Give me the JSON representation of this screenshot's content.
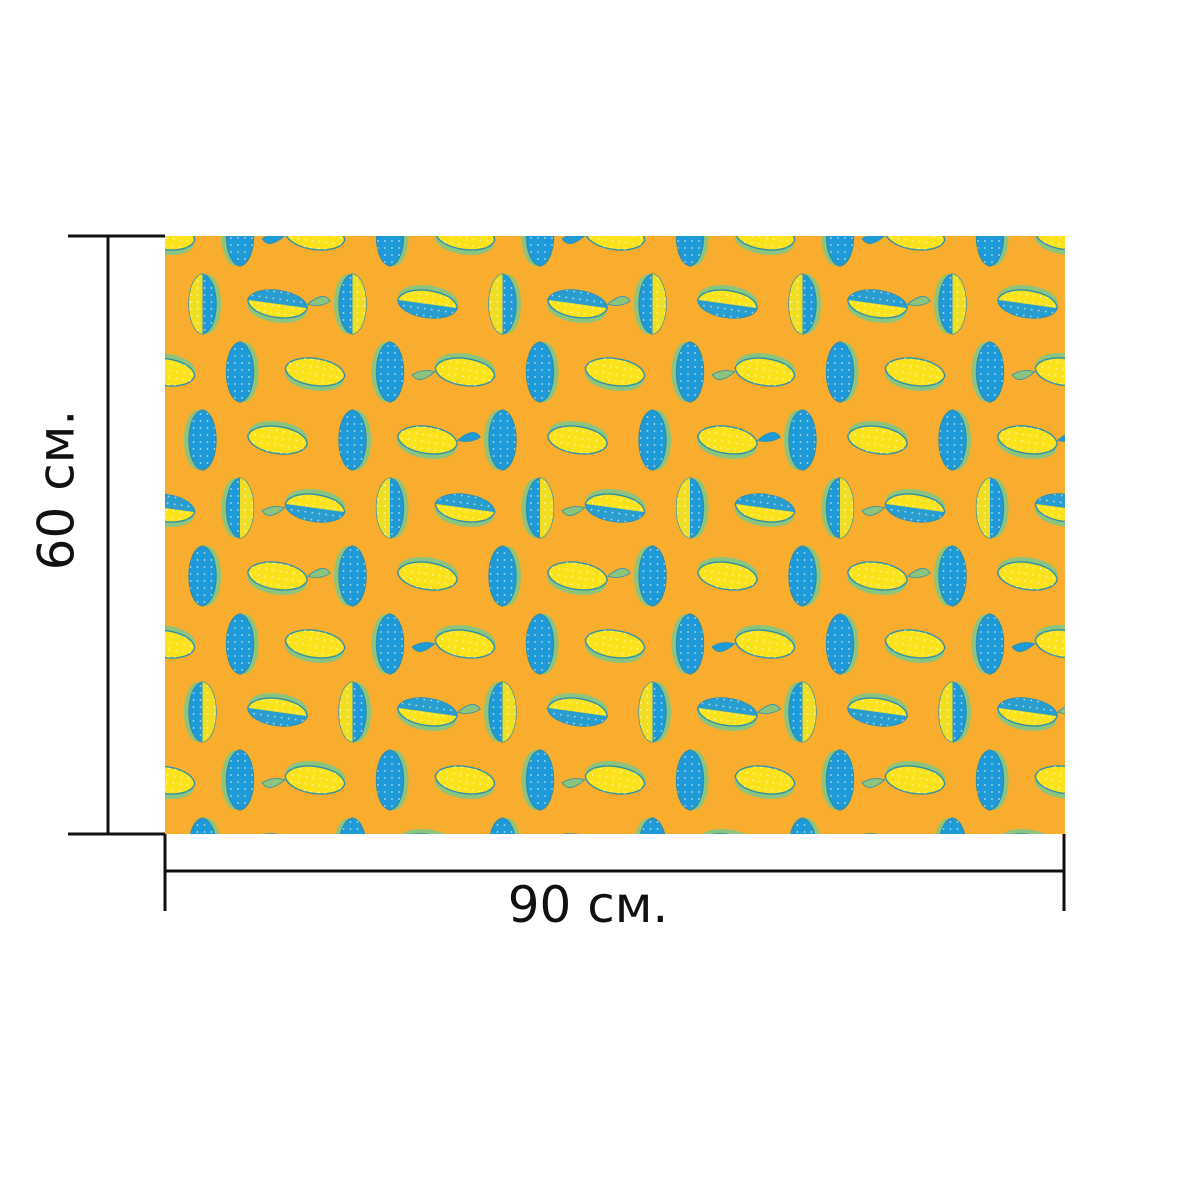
{
  "dimensions": {
    "width_label": "90 см.",
    "height_label": "60 см."
  },
  "pattern": {
    "motif": "lemons",
    "colors": {
      "background": "#f9ad2e",
      "lemon_yellow": "#fce21a",
      "lemon_blue": "#1e9ad8",
      "rind_green": "#8cc37d",
      "outline": "#2a8fae",
      "dimension_line": "#111111"
    }
  }
}
